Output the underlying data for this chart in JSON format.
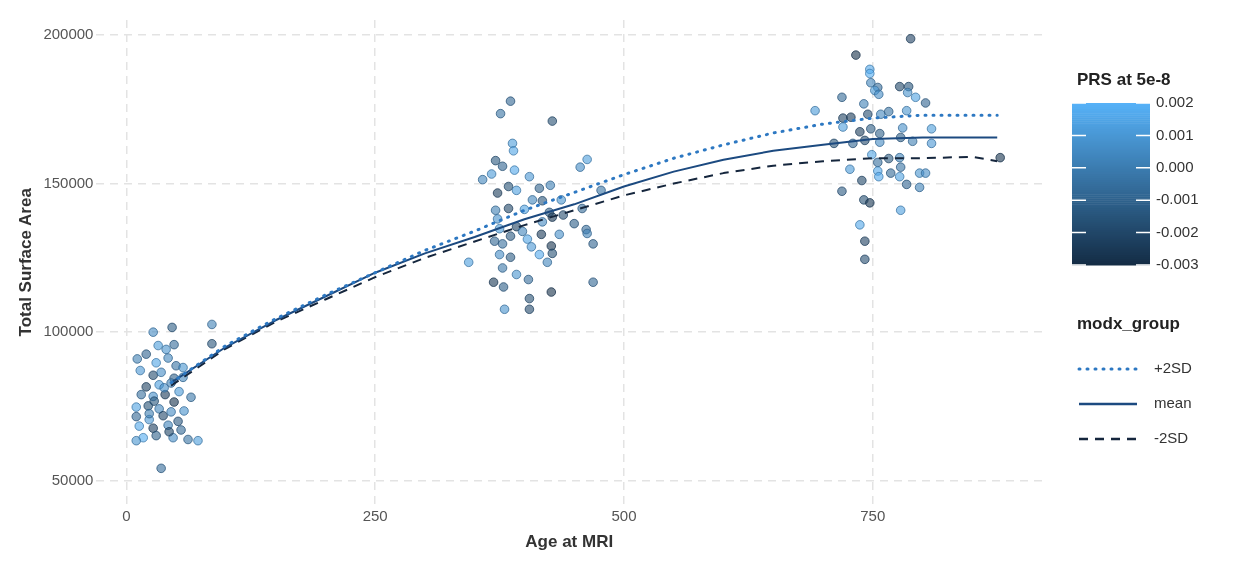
{
  "chart_data": {
    "type": "scatter",
    "xlabel": "Age at MRI",
    "ylabel": "Total Surface Area",
    "clabel": "PRS at 5e-8",
    "legend_title": "modx_group",
    "legend": "right",
    "grid": true,
    "xlim": [
      -30,
      920
    ],
    "xticks": [
      0,
      250,
      500,
      750
    ],
    "ylim": [
      42000,
      205000
    ],
    "yticks": [
      50000,
      100000,
      150000,
      200000
    ],
    "clim": [
      -0.003,
      0.002
    ],
    "cticks": [
      {
        "value": 0.002,
        "label": "0.002"
      },
      {
        "value": 0.001,
        "label": "0.001"
      },
      {
        "value": 0,
        "label": "0.000"
      },
      {
        "value": -0.001,
        "label": "-0.001"
      },
      {
        "value": -0.002,
        "label": "-0.002"
      },
      {
        "value": -0.003,
        "label": "-0.003"
      }
    ],
    "series": [
      {
        "marker": "circle",
        "colors": [
          "#4289c1",
          "#2b5b84",
          "#3e81b6",
          "#275379",
          "#4b9cda",
          "#4691cc",
          "#336b99",
          "#3d7eb3",
          "#2f638f",
          "#4fa4e5",
          "#4186bd",
          "#3773a4",
          "#4996d3",
          "#234b6e",
          "#438bc5",
          "#4794cf",
          "#2c5e87",
          "#3f83ba",
          "#1f4363",
          "#4d9ede",
          "#3e81b6",
          "#356e9d",
          "#458ec8",
          "#1b3b59",
          "#4a99d7",
          "#3976a8",
          "#4ea1e1",
          "#265175",
          "#4186bd",
          "#17334e",
          "#4691cc",
          "#306692",
          "#4996d3",
          "#22486b",
          "#4289c1",
          "#2a5980",
          "#51a6e9",
          "#1e4060",
          "#3f83ba",
          "#326996",
          "#53acf0",
          "#2e618b",
          "#438bc5",
          "#3671a1",
          "#4b9cda",
          "#4794cf",
          "#204667",
          "#336b99",
          "#3d7eb3",
          "#28567d",
          "#458ec8",
          "#306692",
          "#3671a1",
          "#244e72",
          "#4b9cda",
          "#4fa4e5",
          "#28567d",
          "#2f638f",
          "#4a99d7",
          "#3f83ba",
          "#51a6e9",
          "#4996d3",
          "#438bc5",
          "#4b9cda",
          "#265175",
          "#4d9ede",
          "#2e618b",
          "#3e81b6",
          "#1c3e5c",
          "#4186bd",
          "#275379",
          "#4794cf",
          "#204667",
          "#4ea1e1",
          "#3d7eb3",
          "#2b5b84",
          "#326996",
          "#3773a4",
          "#4691cc",
          "#183651",
          "#234b6e",
          "#4289c1",
          "#2c5e87",
          "#336b99",
          "#4a99d7",
          "#1f4363",
          "#3f83ba",
          "#2a5980",
          "#458ec8",
          "#306692",
          "#4fa4e5",
          "#1b3b59",
          "#3e81b6",
          "#356e9d",
          "#4996d3",
          "#2f638f",
          "#17334e",
          "#438bc5",
          "#2b5b84",
          "#52a9ec",
          "#265175",
          "#4186bd",
          "#4d9ede",
          "#3976a8",
          "#4794cf",
          "#336b99",
          "#1a3855",
          "#2c5e87",
          "#306692",
          "#16304a",
          "#244e72",
          "#4691cc",
          "#22486b",
          "#1e4060",
          "#16304a",
          "#51a6e9",
          "#53acf0",
          "#3f83ba",
          "#336b99",
          "#4b9cda",
          "#438bc5",
          "#204667",
          "#275379",
          "#4691cc",
          "#4ea1e1",
          "#2f638f",
          "#326996",
          "#4a99d7",
          "#3e81b6",
          "#1f4363",
          "#1b3b59",
          "#234b6e",
          "#4186bd",
          "#3671a1",
          "#4794cf",
          "#4d9ede",
          "#1c3e5c",
          "#2b5b84",
          "#2e618b",
          "#458ec8",
          "#4b9cda",
          "#265175",
          "#306692",
          "#22486b",
          "#4289c1",
          "#2c5e87",
          "#3d7eb3",
          "#4996d3",
          "#4fa4e5",
          "#356e9d",
          "#28567d",
          "#3f83ba",
          "#4a99d7",
          "#51a6e9",
          "#326996",
          "#3773a4",
          "#4794cf",
          "#438bc5",
          "#52a9ec",
          "#4ea1e1",
          "#204667",
          "#2f638f",
          "#3e81b6",
          "#2a5980",
          "#244e72",
          "#183651",
          "#4d9ede",
          "#51a6e9",
          "#1e4060",
          "#234b6e",
          "#17334e"
        ],
        "x": [
          27,
          46,
          86,
          86,
          32,
          40,
          48,
          11,
          20,
          30,
          42,
          50,
          14,
          27,
          35,
          57,
          48,
          57,
          20,
          33,
          45,
          15,
          27,
          39,
          53,
          65,
          10,
          22,
          33,
          48,
          58,
          10,
          23,
          37,
          45,
          52,
          13,
          27,
          42,
          55,
          17,
          30,
          47,
          62,
          72,
          10,
          43,
          35,
          23,
          28,
          38,
          386,
          376,
          428,
          388,
          389,
          371,
          378,
          367,
          358,
          390,
          405,
          456,
          463,
          384,
          392,
          415,
          426,
          373,
          408,
          418,
          437,
          384,
          400,
          371,
          425,
          458,
          477,
          373,
          428,
          439,
          418,
          450,
          462,
          375,
          392,
          398,
          386,
          435,
          370,
          403,
          417,
          463,
          378,
          407,
          469,
          427,
          375,
          386,
          415,
          428,
          423,
          344,
          378,
          392,
          404,
          369,
          379,
          469,
          427,
          405,
          380,
          405,
          788,
          733,
          747,
          747,
          748,
          755,
          752,
          756,
          777,
          786,
          785,
          793,
          803,
          719,
          692,
          741,
          720,
          728,
          745,
          758,
          766,
          784,
          720,
          737,
          748,
          757,
          780,
          809,
          711,
          730,
          742,
          757,
          778,
          790,
          809,
          749,
          755,
          766,
          777,
          727,
          755,
          768,
          778,
          797,
          803,
          756,
          777,
          739,
          784,
          797,
          719,
          741,
          747,
          778,
          737,
          742,
          742,
          878
        ],
        "values": [
          100000,
          101600,
          102600,
          96100,
          95500,
          94200,
          95800,
          91000,
          92600,
          89700,
          91300,
          88700,
          87100,
          85500,
          86500,
          88100,
          84500,
          84800,
          81600,
          82300,
          82900,
          79000,
          78400,
          79000,
          80000,
          78100,
          74800,
          75200,
          74200,
          76500,
          73500,
          71600,
          70600,
          71900,
          73200,
          70000,
          68400,
          67700,
          68700,
          67100,
          64500,
          65200,
          64500,
          63900,
          63500,
          63500,
          66500,
          54200,
          72600,
          76800,
          81300,
          177700,
          173500,
          171000,
          163500,
          161000,
          157700,
          155800,
          153200,
          151300,
          154500,
          152300,
          155500,
          158100,
          149000,
          147700,
          148400,
          149400,
          146800,
          144500,
          144200,
          144500,
          141600,
          141300,
          141000,
          140300,
          141600,
          147700,
          138100,
          138700,
          139400,
          137100,
          136500,
          134500,
          134800,
          135500,
          133900,
          132300,
          132900,
          130600,
          131300,
          132900,
          133200,
          129700,
          128700,
          129700,
          129000,
          126100,
          125200,
          126100,
          126500,
          123500,
          123500,
          121600,
          119400,
          117700,
          116800,
          115200,
          116800,
          113500,
          111300,
          107700,
          107700,
          198700,
          193200,
          188400,
          187000,
          183900,
          182300,
          181300,
          180000,
          182600,
          182600,
          180600,
          179000,
          177100,
          179000,
          174500,
          176800,
          172000,
          172300,
          173300,
          173300,
          174200,
          174500,
          169000,
          167400,
          168400,
          166800,
          168700,
          168400,
          163500,
          163500,
          164500,
          163900,
          165500,
          164200,
          163500,
          159700,
          157100,
          158400,
          158700,
          154800,
          154200,
          153500,
          155500,
          153500,
          153500,
          152300,
          152300,
          151000,
          149700,
          148700,
          147400,
          144500,
          143500,
          141000,
          136100,
          130600,
          124500,
          158700
        ],
        "cvalues": [
          0.0005,
          -0.0012,
          0.0002,
          -0.0015,
          0.0012,
          0.0008,
          -0.0006,
          0.0001,
          -0.0009,
          0.0015,
          0.0004,
          -0.0003,
          0.001,
          -0.0018,
          0.0006,
          0.0009,
          -0.0011,
          0.0003,
          -0.0021,
          0.0013,
          0.0002,
          -0.0005,
          0.0007,
          -0.0024,
          0.0011,
          -0.0002,
          0.0014,
          -0.0016,
          0.0004,
          -0.0027,
          0.0008,
          -0.0008,
          0.001,
          -0.0019,
          0.0005,
          -0.0013,
          0.0016,
          -0.0022,
          0.0003,
          -0.0007,
          0.0018,
          -0.001,
          0.0006,
          -0.0004,
          0.0012,
          0.0009,
          -0.002,
          -0.0006,
          0.0001,
          -0.0014,
          0.0007,
          -0.0008,
          -0.0004,
          -0.0017,
          0.0012,
          0.0015,
          -0.0014,
          -0.0009,
          0.0011,
          0.0003,
          0.0016,
          0.001,
          0.0006,
          0.0012,
          -0.0016,
          0.0013,
          -0.001,
          0.0002,
          -0.0023,
          0.0004,
          -0.0015,
          0.0009,
          -0.002,
          0.0014,
          0.0001,
          -0.0012,
          -0.0007,
          -0.0003,
          0.0008,
          -0.0026,
          -0.0018,
          0.0005,
          -0.0011,
          -0.0006,
          0.0011,
          -0.0021,
          0.0003,
          -0.0013,
          0.0007,
          -0.0008,
          0.0015,
          -0.0024,
          0.0002,
          -0.0005,
          0.001,
          -0.0009,
          -0.0027,
          0.0006,
          -0.0012,
          0.0017,
          -0.0016,
          0.0004,
          0.0013,
          -0.0002,
          0.0009,
          -0.0006,
          -0.0025,
          -0.0011,
          -0.0008,
          -0.0028,
          -0.0017,
          0.0008,
          -0.0019,
          -0.0022,
          -0.0028,
          0.0016,
          0.0018,
          0.0003,
          -0.0006,
          0.0012,
          0.0006,
          -0.002,
          -0.0015,
          0.0008,
          0.0014,
          -0.0009,
          -0.0007,
          0.0011,
          0.0002,
          -0.0021,
          -0.0024,
          -0.0018,
          0.0004,
          -0.0004,
          0.0009,
          0.0013,
          -0.0023,
          -0.0012,
          -0.001,
          0.0007,
          0.0012,
          -0.0016,
          -0.0008,
          -0.0019,
          0.0005,
          -0.0011,
          0.0001,
          0.001,
          0.0015,
          -0.0005,
          -0.0014,
          0.0003,
          0.0011,
          0.0016,
          -0.0007,
          -0.0003,
          0.0009,
          0.0006,
          0.0017,
          0.0014,
          -0.002,
          -0.0009,
          0.0002,
          -0.0013,
          -0.0017,
          -0.0026,
          0.0013,
          0.0016,
          -0.0022,
          -0.0018,
          -0.0027
        ]
      },
      {
        "type": "line",
        "name": "+2SD",
        "color": "#2d78c2",
        "line_style": "dotted",
        "marker": "none",
        "x": [
          45,
          100,
          150,
          200,
          250,
          300,
          350,
          400,
          450,
          500,
          550,
          600,
          650,
          700,
          750,
          800,
          875
        ],
        "values": [
          83000,
          95500,
          104500,
          112500,
          120000,
          127500,
          134000,
          141000,
          147000,
          153000,
          158500,
          163000,
          167000,
          170000,
          172000,
          173000,
          173000
        ]
      },
      {
        "type": "line",
        "name": "mean",
        "color": "#1c4a80",
        "line_style": "solid",
        "marker": "none",
        "x": [
          45,
          100,
          150,
          200,
          250,
          300,
          350,
          400,
          450,
          500,
          550,
          600,
          650,
          700,
          750,
          800,
          875
        ],
        "values": [
          83000,
          95000,
          104000,
          112000,
          120000,
          126500,
          132000,
          138000,
          143000,
          149000,
          154000,
          158000,
          161000,
          163000,
          165000,
          165500,
          165500
        ]
      },
      {
        "type": "line",
        "name": "-2SD",
        "color": "#15263d",
        "line_style": "dashed",
        "marker": "none",
        "x": [
          45,
          100,
          150,
          200,
          250,
          300,
          350,
          400,
          450,
          500,
          550,
          600,
          650,
          700,
          750,
          800,
          850,
          875
        ],
        "values": [
          82000,
          94500,
          103500,
          111000,
          118500,
          125000,
          130500,
          136000,
          141000,
          146000,
          150000,
          153500,
          156000,
          157500,
          158500,
          158500,
          159000,
          157500
        ]
      }
    ]
  }
}
